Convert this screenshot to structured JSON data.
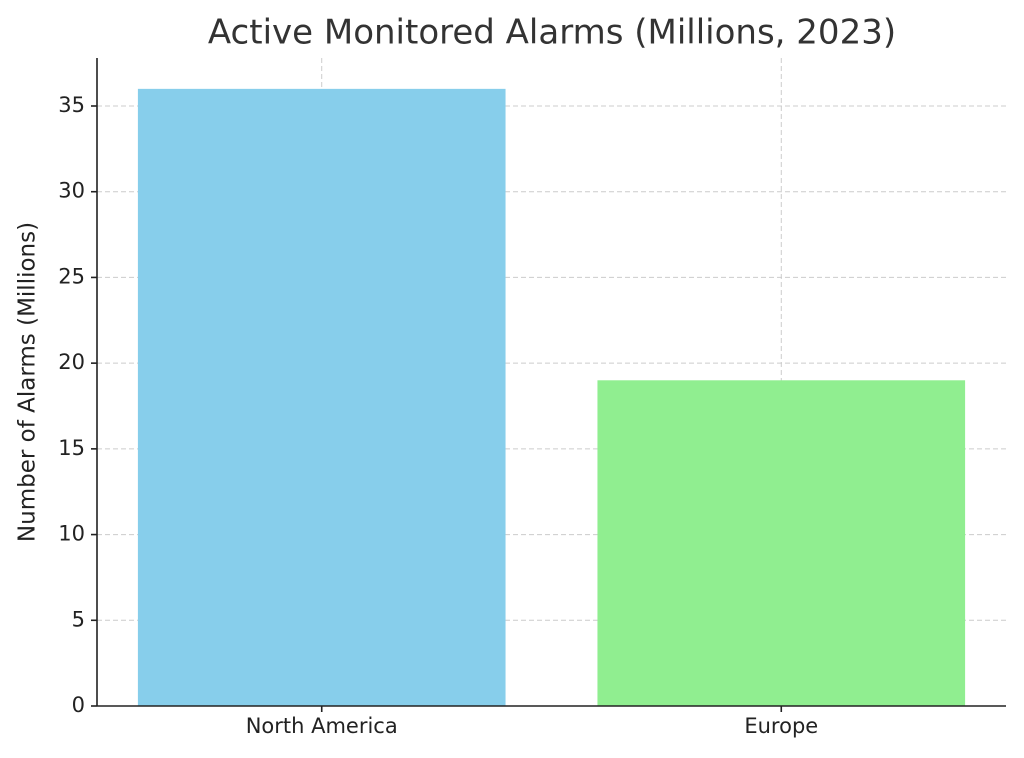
{
  "chart_data": {
    "type": "bar",
    "title": "Active Monitored Alarms (Millions, 2023)",
    "y_label": "Number of Alarms (Millions)",
    "categories": [
      "North America",
      "Europe"
    ],
    "values": [
      36,
      19
    ],
    "colors": [
      "#87ceeb",
      "#90ee90"
    ],
    "ylim": [
      0,
      37.8
    ],
    "yticks": [
      0,
      5,
      10,
      15,
      20,
      25,
      30,
      35
    ],
    "grid": true
  }
}
